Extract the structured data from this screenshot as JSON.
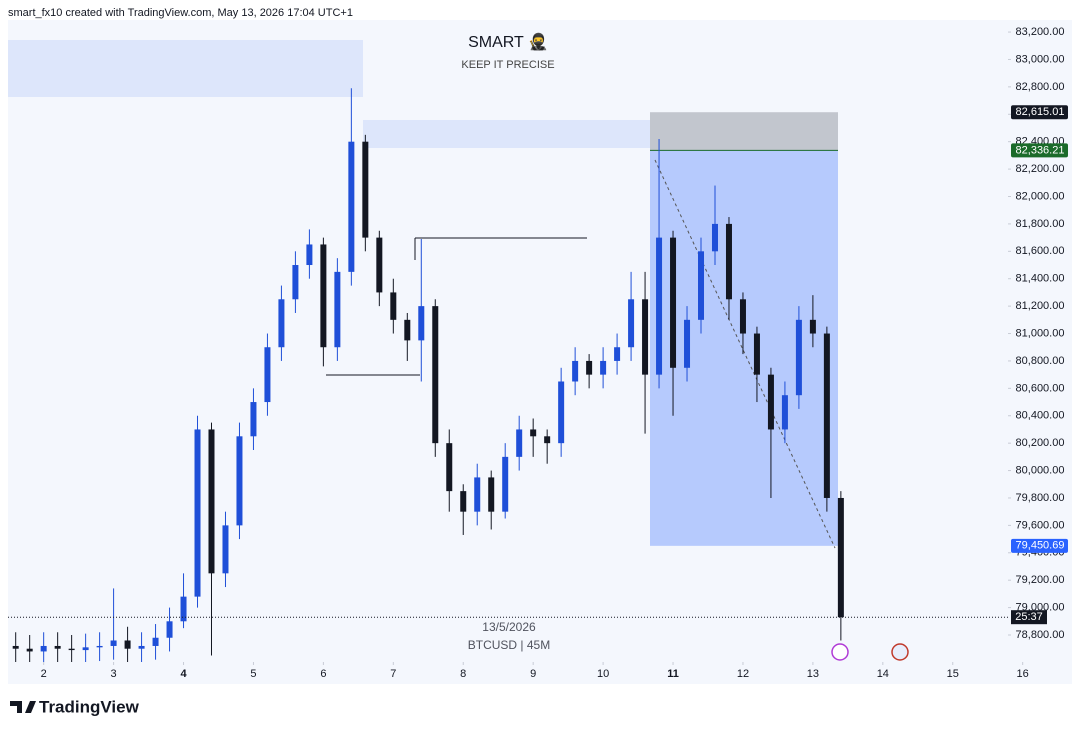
{
  "header": {
    "credit": "smart_fx10 created with TradingView.com, May 13, 2026 17:04 UTC+1"
  },
  "footer": {
    "brand": "TradingView"
  },
  "chart_data": {
    "type": "candlestick",
    "title": "SMART 🥷",
    "subtitle": "KEEP IT PRECISE",
    "annotations": [
      "13/5/2026",
      "BTCUSD | 45M"
    ],
    "colors": {
      "up": "#1f4fd8",
      "down": "#131722"
    },
    "x": [
      1.6,
      1.8,
      2.0,
      2.2,
      2.4,
      2.6,
      2.8,
      3.0,
      3.2,
      3.4,
      3.6,
      3.8,
      4.0,
      4.2,
      4.4,
      4.6,
      4.8,
      5.0,
      5.2,
      5.4,
      5.6,
      5.8,
      6.0,
      6.2,
      6.4,
      6.6,
      6.8,
      7.0,
      7.2,
      7.4,
      7.6,
      7.8,
      8.0,
      8.2,
      8.4,
      8.6,
      8.8,
      9.0,
      9.2,
      9.4,
      9.6,
      9.8,
      10.0,
      10.2,
      10.4,
      10.6,
      10.8,
      11.0,
      11.2,
      11.4,
      11.6,
      11.8,
      12.0,
      12.2,
      12.4,
      12.6,
      12.8,
      13.0,
      13.2,
      13.4
    ],
    "open": [
      78720,
      78700,
      78680,
      78720,
      78700,
      78690,
      78710,
      78720,
      78760,
      78700,
      78720,
      78780,
      78900,
      79080,
      80300,
      79250,
      79600,
      80250,
      80500,
      80900,
      81250,
      81500,
      81650,
      80900,
      81450,
      82400,
      81700,
      81300,
      81100,
      80950,
      81200,
      80200,
      79850,
      79700,
      79950,
      79700,
      80100,
      80300,
      80250,
      80200,
      80650,
      80800,
      80700,
      80800,
      80900,
      81250,
      80700,
      81700,
      80750,
      81100,
      81600,
      81800,
      81250,
      81000,
      80700,
      80300,
      80550,
      81100,
      81000,
      79800
    ],
    "high": [
      78820,
      78800,
      78820,
      78820,
      78800,
      78810,
      78820,
      79140,
      78860,
      78820,
      78880,
      79000,
      79250,
      80400,
      80350,
      79700,
      80350,
      80600,
      81000,
      81350,
      81600,
      81760,
      81700,
      81550,
      82790,
      82450,
      81750,
      81400,
      81150,
      81690,
      81250,
      80300,
      79900,
      80050,
      80000,
      80200,
      80400,
      80380,
      80300,
      80750,
      80900,
      80850,
      80900,
      81000,
      81450,
      81450,
      82420,
      81750,
      81200,
      81700,
      82080,
      81850,
      81300,
      81050,
      80750,
      80650,
      81200,
      81280,
      81050,
      79850
    ],
    "low": [
      78600,
      78580,
      78580,
      78600,
      78590,
      78590,
      78610,
      78620,
      78600,
      78600,
      78620,
      78680,
      78850,
      79000,
      78650,
      79150,
      79500,
      80150,
      80400,
      80800,
      81150,
      81400,
      80760,
      80800,
      81350,
      81600,
      81200,
      81000,
      80800,
      80650,
      80100,
      79700,
      79530,
      79600,
      79570,
      79650,
      80000,
      80100,
      80050,
      80100,
      80550,
      80600,
      80600,
      80700,
      80800,
      80270,
      80600,
      80400,
      80650,
      81000,
      81500,
      81100,
      80850,
      80500,
      79800,
      80200,
      80450,
      80900,
      79700,
      78760
    ],
    "close": [
      78700,
      78680,
      78720,
      78700,
      78690,
      78710,
      78720,
      78760,
      78700,
      78720,
      78780,
      78900,
      79080,
      80300,
      79250,
      79600,
      80250,
      80500,
      80900,
      81250,
      81500,
      81650,
      80900,
      81450,
      82400,
      81700,
      81300,
      81100,
      80950,
      81200,
      80200,
      79850,
      79700,
      79950,
      79700,
      80100,
      80300,
      80250,
      80200,
      80650,
      80800,
      80700,
      80800,
      80900,
      81250,
      80700,
      81700,
      80750,
      81100,
      81600,
      81800,
      81250,
      81000,
      80700,
      80300,
      80550,
      81100,
      81000,
      79800,
      78930
    ],
    "xlim": [
      1.49,
      15.79
    ],
    "xticks": [
      2,
      3,
      4,
      5,
      6,
      7,
      8,
      9,
      10,
      11,
      12,
      13,
      14,
      15,
      16
    ],
    "ylim": [
      78603,
      83288
    ],
    "yticks": [
      {
        "value": 78800,
        "label": "78,800.00"
      },
      {
        "value": 79000,
        "label": "79,000.00"
      },
      {
        "value": 79200,
        "label": "79,200.00"
      },
      {
        "value": 79400,
        "label": "79,400.00"
      },
      {
        "value": 79600,
        "label": "79,600.00"
      },
      {
        "value": 79800,
        "label": "79,800.00"
      },
      {
        "value": 80000,
        "label": "80,000.00"
      },
      {
        "value": 80200,
        "label": "80,200.00"
      },
      {
        "value": 80400,
        "label": "80,400.00"
      },
      {
        "value": 80600,
        "label": "80,600.00"
      },
      {
        "value": 80800,
        "label": "80,800.00"
      },
      {
        "value": 81000,
        "label": "81,000.00"
      },
      {
        "value": 81200,
        "label": "81,200.00"
      },
      {
        "value": 81400,
        "label": "81,400.00"
      },
      {
        "value": 81600,
        "label": "81,600.00"
      },
      {
        "value": 81800,
        "label": "81,800.00"
      },
      {
        "value": 82000,
        "label": "82,000.00"
      },
      {
        "value": 82200,
        "label": "82,200.00"
      },
      {
        "value": 82400,
        "label": "82,400.00"
      },
      {
        "value": 82600,
        "label": "82,600.00"
      },
      {
        "value": 82800,
        "label": "82,800.00"
      },
      {
        "value": 83000,
        "label": "83,000.00"
      },
      {
        "value": 83200,
        "label": "83,200.00"
      }
    ],
    "price_labels": [
      {
        "value": 82615.01,
        "label": "82,615.01",
        "color": "#131722"
      },
      {
        "value": 82336.21,
        "label": "82,336.21",
        "color": "#1b6b2a"
      },
      {
        "value": 79450.69,
        "label": "79,450.69",
        "color": "#2962ff"
      }
    ],
    "countdown_label": "25:37"
  }
}
